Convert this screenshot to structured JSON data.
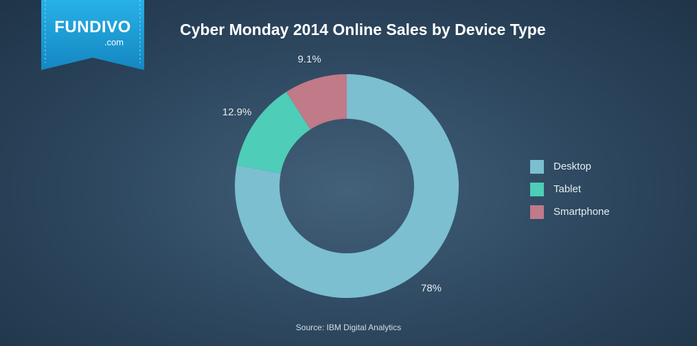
{
  "brand": {
    "name": "FUNDIVO",
    "suffix": ".com",
    "color": "#1a9fd6"
  },
  "chart_data": {
    "type": "pie",
    "title": "Cyber Monday 2014 Online Sales by Device Type",
    "categories": [
      "Desktop",
      "Tablet",
      "Smartphone"
    ],
    "values": [
      78,
      12.9,
      9.1
    ],
    "labels": [
      "78%",
      "12.9%",
      "9.1%"
    ],
    "colors": [
      "#7bbfd0",
      "#4ecdb9",
      "#c07a88"
    ],
    "donut": true,
    "legend_position": "right"
  },
  "legend": [
    {
      "label": "Desktop",
      "color": "#7bbfd0"
    },
    {
      "label": "Tablet",
      "color": "#4ecdb9"
    },
    {
      "label": "Smartphone",
      "color": "#c07a88"
    }
  ],
  "source": "Source: IBM Digital Analytics"
}
